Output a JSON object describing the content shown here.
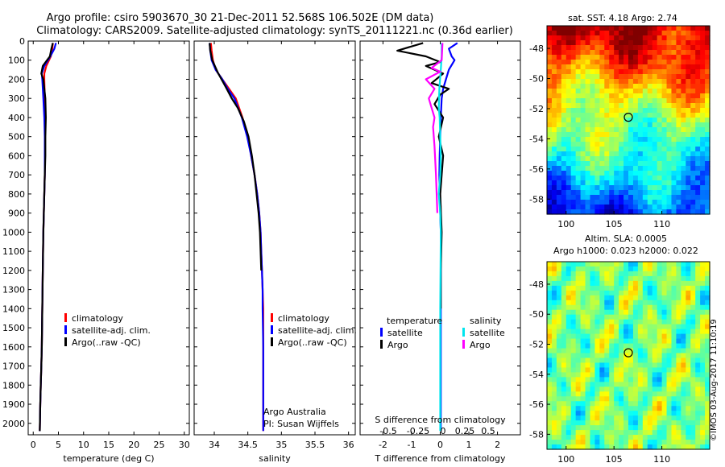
{
  "header": {
    "line1": "Argo profile: csiro 5903670_30 21-Dec-2011 52.568S 106.502E (DM data)",
    "line2": "Climatology: CARS2009. Satellite-adjusted climatology: synTS_20111221.nc (0.36d earlier)"
  },
  "colors": {
    "climatology": "#ff0000",
    "satellite_adj": "#0000ff",
    "argo": "#000000",
    "sat_salinity": "#00e5ee",
    "argo_salinity": "#ff00ff"
  },
  "depth_axis": {
    "ticks": [
      0,
      100,
      200,
      300,
      400,
      500,
      600,
      700,
      800,
      900,
      1000,
      1100,
      1200,
      1300,
      1400,
      1500,
      1600,
      1700,
      1800,
      1900,
      2000
    ],
    "ylim": [
      0,
      2060
    ]
  },
  "chart_data": [
    {
      "type": "line",
      "id": "temperature",
      "xlabel": "temperature (deg C)",
      "xlim": [
        -1,
        31
      ],
      "xticks": [
        0,
        5,
        10,
        15,
        20,
        25,
        30
      ],
      "ylim": [
        0,
        2060
      ],
      "legend": [
        "climatology",
        "satellite-adj. clim.",
        "Argo(..raw -QC)"
      ],
      "series": [
        {
          "name": "climatology",
          "color": "#ff0000",
          "x": [
            3.9,
            3.8,
            3.5,
            2.6,
            2.2,
            2.2,
            2.3,
            2.3,
            2.3,
            2.3,
            2.3,
            2.2,
            2.1,
            2.0,
            1.9,
            1.8,
            1.7,
            1.6,
            1.5,
            1.4,
            1.3
          ],
          "y": [
            10,
            40,
            80,
            130,
            170,
            200,
            300,
            400,
            500,
            600,
            700,
            800,
            900,
            1000,
            1200,
            1400,
            1600,
            1700,
            1800,
            1900,
            2040
          ]
        },
        {
          "name": "satellite-adj. clim.",
          "color": "#0000ff",
          "x": [
            4.5,
            4.2,
            3.4,
            2.2,
            1.7,
            1.8,
            2.0,
            2.2,
            2.3,
            2.3,
            2.3,
            2.2,
            2.1,
            2.0,
            1.9,
            1.8,
            1.7,
            1.6,
            1.5,
            1.4,
            1.3
          ],
          "y": [
            10,
            40,
            80,
            130,
            170,
            200,
            300,
            400,
            500,
            600,
            700,
            800,
            900,
            1000,
            1200,
            1400,
            1600,
            1700,
            1800,
            1900,
            2040
          ]
        },
        {
          "name": "Argo(..raw -QC)",
          "color": "#000000",
          "x": [
            3.9,
            3.6,
            3.3,
            1.9,
            1.6,
            2.0,
            2.4,
            2.5,
            2.4,
            2.4,
            2.3,
            2.2,
            2.1,
            2.0,
            1.9,
            1.8,
            1.7,
            1.6,
            1.5,
            1.4,
            1.3
          ],
          "y": [
            10,
            40,
            80,
            130,
            170,
            200,
            300,
            400,
            500,
            600,
            700,
            800,
            900,
            1000,
            1200,
            1400,
            1600,
            1700,
            1800,
            1900,
            2040
          ]
        }
      ]
    },
    {
      "type": "line",
      "id": "salinity",
      "xlabel": "salinity",
      "xlim": [
        33.7,
        36.1
      ],
      "xticks": [
        34,
        34.5,
        35,
        35.5,
        36
      ],
      "ylim": [
        0,
        2060
      ],
      "legend": [
        "climatology",
        "satellite-adj. clim.",
        "Argo(..raw -QC)"
      ],
      "annotation": [
        "Argo Australia",
        "PI: Susan Wijffels"
      ],
      "series": [
        {
          "name": "climatology",
          "color": "#ff0000",
          "x": [
            33.95,
            33.96,
            33.98,
            34.02,
            34.12,
            34.22,
            34.32,
            34.42,
            34.5,
            34.55,
            34.6,
            34.64,
            34.67,
            34.69,
            34.7,
            34.71,
            34.72,
            34.73,
            34.73,
            34.73,
            34.73
          ],
          "y": [
            10,
            50,
            100,
            150,
            200,
            250,
            300,
            400,
            500,
            600,
            700,
            800,
            900,
            1000,
            1100,
            1200,
            1300,
            1400,
            1600,
            1800,
            2040
          ]
        },
        {
          "name": "satellite-adj. clim.",
          "color": "#0000ff",
          "x": [
            33.93,
            33.94,
            33.96,
            34.02,
            34.12,
            34.2,
            34.3,
            34.41,
            34.49,
            34.55,
            34.6,
            34.64,
            34.67,
            34.69,
            34.7,
            34.71,
            34.72,
            34.72,
            34.73,
            34.73,
            34.73
          ],
          "y": [
            10,
            50,
            100,
            150,
            200,
            250,
            300,
            400,
            500,
            600,
            700,
            800,
            900,
            1000,
            1100,
            1200,
            1300,
            1400,
            1600,
            1800,
            2040
          ]
        },
        {
          "name": "Argo(..raw -QC)",
          "color": "#000000",
          "x": [
            33.93,
            33.94,
            33.97,
            34.06,
            34.17,
            34.26,
            34.35,
            34.44,
            34.51,
            34.56,
            34.6,
            34.63,
            34.66,
            34.68,
            34.69,
            34.7
          ],
          "y": [
            10,
            50,
            100,
            170,
            240,
            300,
            350,
            420,
            500,
            600,
            700,
            800,
            900,
            1000,
            1100,
            1200
          ]
        }
      ]
    },
    {
      "type": "line",
      "id": "differences",
      "xlabel": "T difference from climatology",
      "xlabel_top": "S difference from climatology",
      "xlim": [
        -2.8,
        2.8
      ],
      "xticks": [
        -2,
        -1,
        0,
        1,
        2
      ],
      "xticks_top": [
        "-0.5",
        "-0.25",
        "0",
        "0.25",
        "0.5"
      ],
      "ylim": [
        0,
        2060
      ],
      "legend_groups": [
        {
          "title": "temperature",
          "items": [
            "satellite",
            "Argo"
          ]
        },
        {
          "title": "salinity",
          "items": [
            "satellite",
            "Argo"
          ]
        }
      ],
      "series": [
        {
          "name": "temperature satellite",
          "color": "#0000ff",
          "x": [
            0.6,
            0.3,
            0.4,
            0.5,
            0.3,
            0.2,
            0.1,
            0.05,
            0.02,
            0,
            -0.02,
            -0.03,
            0,
            0.02,
            0.02,
            0.02,
            0.02
          ],
          "y": [
            10,
            40,
            80,
            100,
            150,
            200,
            250,
            300,
            400,
            500,
            600,
            700,
            900,
            1000,
            1400,
            1800,
            2040
          ]
        },
        {
          "name": "temperature Argo",
          "color": "#000000",
          "x": [
            -0.6,
            -1.5,
            -0.5,
            0,
            -0.5,
            0.1,
            -0.3,
            0.3,
            0,
            -0.2,
            0.1,
            -0.05,
            0.1,
            0,
            0.05,
            0.02,
            0.02
          ],
          "y": [
            10,
            50,
            80,
            110,
            130,
            170,
            220,
            250,
            280,
            330,
            400,
            500,
            600,
            800,
            1000,
            1200,
            1400
          ]
        },
        {
          "name": "salinity satellite",
          "color": "#00e5ee",
          "x": [
            0.05,
            0.05,
            0.02,
            -0.03,
            -0.05,
            -0.02,
            0,
            0.02,
            0,
            -0.05,
            0,
            0.02,
            0,
            0
          ],
          "y": [
            10,
            80,
            150,
            250,
            350,
            400,
            500,
            600,
            700,
            800,
            900,
            1000,
            1400,
            2040
          ]
        },
        {
          "name": "salinity Argo",
          "color": "#ff00ff",
          "x": [
            0.08,
            0.05,
            -0.3,
            0,
            -0.5,
            -0.2,
            -0.4,
            -0.3,
            -0.2,
            -0.25,
            -0.2,
            -0.15,
            -0.1
          ],
          "y": [
            10,
            100,
            140,
            160,
            200,
            250,
            300,
            350,
            400,
            450,
            550,
            700,
            900
          ]
        }
      ]
    },
    {
      "type": "heatmap",
      "id": "sst-map",
      "title": "sat. SST: 4.18  Argo: 2.74",
      "xticks": [
        100,
        105,
        110
      ],
      "yticks": [
        -48,
        -50,
        -52,
        -54,
        -56,
        -58
      ],
      "xlim": [
        98,
        115
      ],
      "ylim": [
        -59,
        -46.5
      ],
      "marker": {
        "lon": 106.5,
        "lat": -52.57
      }
    },
    {
      "type": "heatmap",
      "id": "sla-map",
      "title": "Altim. SLA: 0.0005",
      "subtitle": "Argo h1000: 0.023 h2000: 0.022",
      "xticks": [
        100,
        105,
        110
      ],
      "yticks": [
        -48,
        -50,
        -52,
        -54,
        -56,
        -58
      ],
      "xlim": [
        98,
        115
      ],
      "ylim": [
        -59,
        -46.5
      ],
      "marker": {
        "lon": 106.5,
        "lat": -52.57
      }
    }
  ],
  "credit": "©IMOS 03-Aug-2017 11:10:19"
}
